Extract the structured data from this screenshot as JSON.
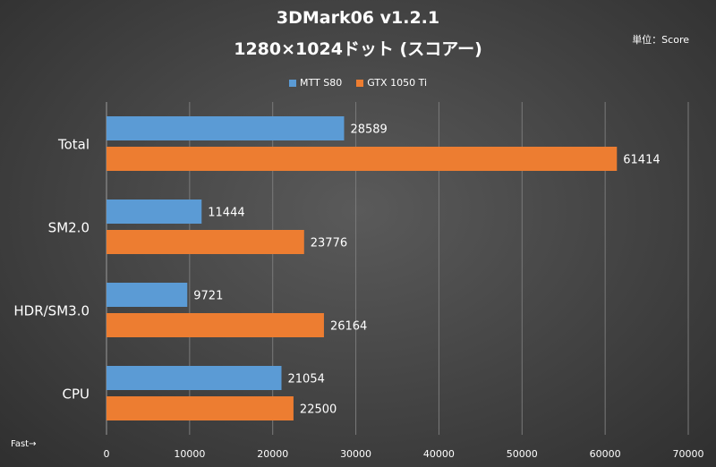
{
  "chart_data": {
    "type": "bar",
    "orientation": "horizontal",
    "title": "3DMark06 v1.2.1",
    "subtitle": "1280×1024ドット (スコアー)",
    "unit_label": "単位：Score",
    "footnote": "Fast→",
    "categories": [
      "Total",
      "SM2.0",
      "HDR/SM3.0",
      "CPU"
    ],
    "series": [
      {
        "name": "MTT S80",
        "color": "#5b9bd5",
        "values": [
          28589,
          11444,
          9721,
          21054
        ]
      },
      {
        "name": "GTX 1050 Ti",
        "color": "#ed7d31",
        "values": [
          61414,
          23776,
          26164,
          22500
        ]
      }
    ],
    "xlim": [
      0,
      70000
    ],
    "xticks": [
      0,
      10000,
      20000,
      30000,
      40000,
      50000,
      60000,
      70000
    ],
    "grid": true,
    "legend_position": "top"
  }
}
